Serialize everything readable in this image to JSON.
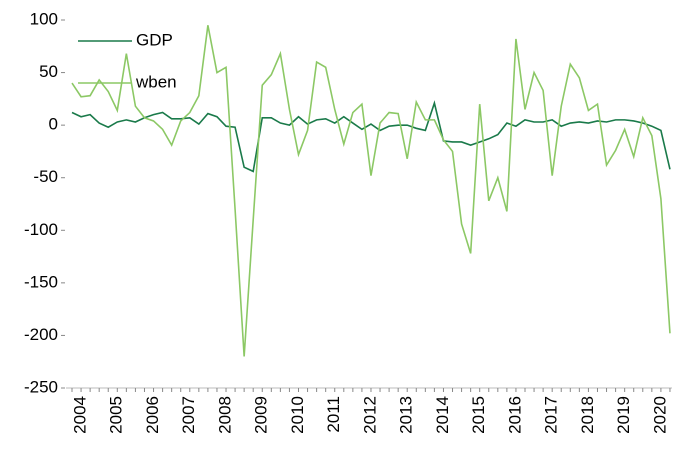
{
  "chart_data": {
    "type": "line",
    "categories": [
      "2004",
      null,
      null,
      null,
      "2005",
      null,
      null,
      null,
      "2006",
      null,
      null,
      null,
      "2007",
      null,
      null,
      null,
      "2008",
      null,
      null,
      null,
      "2009",
      null,
      null,
      null,
      "2010",
      null,
      null,
      null,
      "2011",
      null,
      null,
      null,
      "2012",
      null,
      null,
      null,
      "2013",
      null,
      null,
      null,
      "2014",
      null,
      null,
      null,
      "2015",
      null,
      null,
      null,
      "2016",
      null,
      null,
      null,
      "2017",
      null,
      null,
      null,
      "2018",
      null,
      null,
      null,
      "2019",
      null,
      null,
      null,
      "2020",
      null,
      null
    ],
    "series": [
      {
        "name": "GDP",
        "color": "#1a7a4a",
        "values": [
          12,
          8,
          10,
          2,
          -2,
          3,
          5,
          3,
          7,
          10,
          12,
          6,
          6,
          7,
          1,
          11,
          8,
          -1,
          -2,
          -40,
          -44,
          7,
          7,
          2,
          0,
          8,
          1,
          5,
          6,
          2,
          8,
          2,
          -4,
          1,
          -5,
          -1,
          0,
          0,
          -3,
          -5,
          21,
          -15,
          -16,
          -16,
          -19,
          -16,
          -13,
          -9,
          2,
          -1,
          5,
          3,
          3,
          5,
          -1,
          2,
          3,
          2,
          4,
          3,
          5,
          5,
          4,
          2,
          -1,
          -5,
          -42
        ]
      },
      {
        "name": "wben",
        "color": "#8cc865",
        "values": [
          40,
          27,
          28,
          43,
          32,
          14,
          68,
          18,
          7,
          4,
          -4,
          -19,
          4,
          12,
          28,
          95,
          50,
          55,
          -80,
          -220,
          -90,
          38,
          48,
          68,
          15,
          -28,
          -5,
          60,
          55,
          15,
          -18,
          12,
          20,
          -48,
          2,
          12,
          11,
          -32,
          22,
          5,
          5,
          -14,
          -25,
          -94,
          -122,
          20,
          -72,
          -50,
          -82,
          82,
          15,
          50,
          33,
          -48,
          18,
          58,
          45,
          14,
          20,
          -38,
          -24,
          -4,
          -30,
          7,
          -10,
          -70,
          -198
        ]
      }
    ],
    "ylim": [
      -250,
      100
    ],
    "yticks": [
      -250,
      -200,
      -150,
      -100,
      -50,
      0,
      50,
      100
    ],
    "grid": false,
    "legend": "upper left"
  }
}
